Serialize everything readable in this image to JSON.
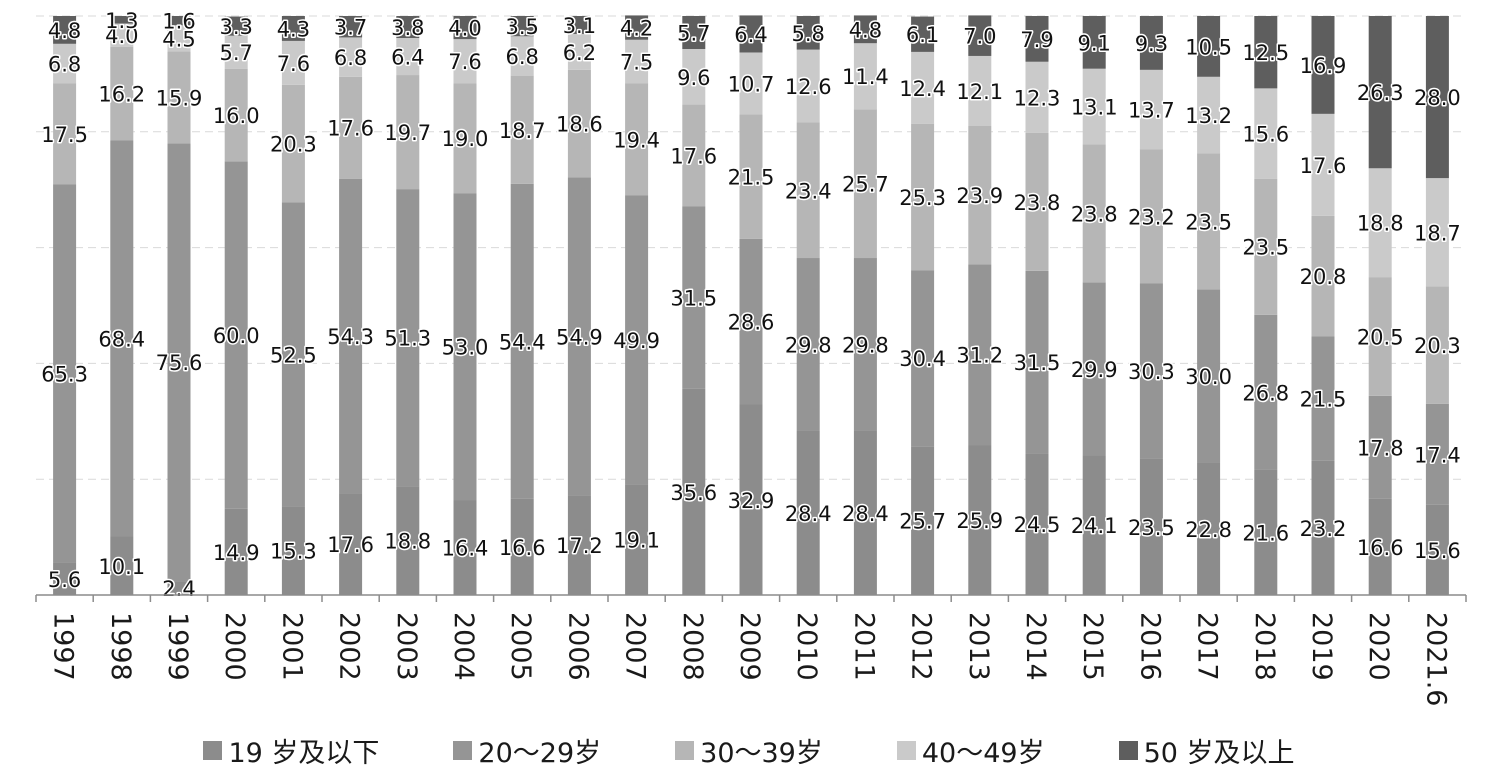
{
  "chart_data": {
    "type": "bar",
    "stacked": true,
    "percent": true,
    "categories": [
      "1997",
      "1998",
      "1999",
      "2000",
      "2001",
      "2002",
      "2003",
      "2004",
      "2005",
      "2006",
      "2007",
      "2008",
      "2009",
      "2010",
      "2011",
      "2012",
      "2013",
      "2014",
      "2015",
      "2016",
      "2017",
      "2018",
      "2019",
      "2020",
      "2021.6"
    ],
    "series": [
      {
        "name": "19 岁及以下",
        "color": "#8c8c8c",
        "values": [
          5.6,
          10.1,
          2.4,
          14.9,
          15.3,
          17.6,
          18.8,
          16.4,
          16.6,
          17.2,
          19.1,
          35.6,
          32.9,
          28.4,
          28.4,
          25.7,
          25.9,
          24.5,
          24.1,
          23.5,
          22.8,
          21.6,
          23.2,
          16.6,
          15.6
        ]
      },
      {
        "name": "20～29岁",
        "color": "#959595",
        "values": [
          65.3,
          68.4,
          75.6,
          60.0,
          52.5,
          54.3,
          51.3,
          53.0,
          54.4,
          54.9,
          49.9,
          31.5,
          28.6,
          29.8,
          29.8,
          30.4,
          31.2,
          31.5,
          29.9,
          30.3,
          30.0,
          26.8,
          21.5,
          17.8,
          17.4
        ]
      },
      {
        "name": "30～39岁",
        "color": "#b6b6b6",
        "values": [
          17.5,
          16.2,
          15.9,
          16.0,
          20.3,
          17.6,
          19.7,
          19.0,
          18.7,
          18.6,
          19.4,
          17.6,
          21.5,
          23.4,
          25.7,
          25.3,
          23.9,
          23.8,
          23.8,
          23.2,
          23.5,
          23.5,
          20.8,
          20.5,
          20.3
        ]
      },
      {
        "name": "40～49岁",
        "color": "#cacaca",
        "values": [
          6.8,
          4.0,
          4.5,
          5.7,
          7.6,
          6.8,
          6.4,
          7.6,
          6.8,
          6.2,
          7.5,
          9.6,
          10.7,
          12.6,
          11.4,
          12.4,
          12.1,
          12.3,
          13.1,
          13.7,
          13.2,
          15.6,
          17.6,
          18.8,
          18.7
        ]
      },
      {
        "name": "50 岁及以上",
        "color": "#5e5e5e",
        "values": [
          4.8,
          1.3,
          1.6,
          3.3,
          4.3,
          3.7,
          3.8,
          4.0,
          3.5,
          3.1,
          4.2,
          5.7,
          6.4,
          5.8,
          4.8,
          6.1,
          7.0,
          7.9,
          9.1,
          9.3,
          10.5,
          12.5,
          16.9,
          26.3,
          28.0
        ]
      }
    ],
    "ylim": [
      0,
      100
    ],
    "grid": true,
    "legend_position": "bottom",
    "xtick_rotation": "vertical"
  }
}
